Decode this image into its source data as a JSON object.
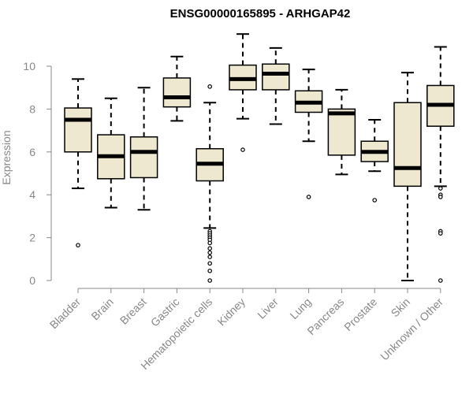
{
  "chart_data": {
    "type": "boxplot",
    "title": "ENSG00000165895 - ARHGAP42",
    "xlabel": "",
    "ylabel": "Expression",
    "ylim": [
      0,
      10.5
    ],
    "yticks": [
      0,
      2,
      4,
      6,
      8,
      10
    ],
    "box_fill": "#efe8d0",
    "categories": [
      "Bladder",
      "Brain",
      "Breast",
      "Gastric",
      "Hematopoietic cells",
      "Kidney",
      "Liver",
      "Lung",
      "Pancreas",
      "Prostate",
      "Skin",
      "Unknown / Other"
    ],
    "boxes": [
      {
        "min": 4.3,
        "q1": 6.0,
        "median": 7.5,
        "q3": 8.05,
        "max": 9.4,
        "outliers": [
          1.65
        ]
      },
      {
        "min": 3.4,
        "q1": 4.75,
        "median": 5.8,
        "q3": 6.8,
        "max": 8.5,
        "outliers": []
      },
      {
        "min": 3.3,
        "q1": 4.8,
        "median": 6.0,
        "q3": 6.7,
        "max": 9.0,
        "outliers": []
      },
      {
        "min": 7.45,
        "q1": 8.1,
        "median": 8.55,
        "q3": 9.45,
        "max": 10.45,
        "outliers": []
      },
      {
        "min": 2.45,
        "q1": 4.65,
        "median": 5.45,
        "q3": 6.15,
        "max": 8.3,
        "outliers": [
          9.05,
          2.3,
          2.2,
          2.1,
          2.0,
          1.9,
          1.75,
          1.5,
          1.3,
          1.1,
          0.8,
          0.45,
          0.0
        ]
      },
      {
        "min": 7.55,
        "q1": 8.9,
        "median": 9.4,
        "q3": 10.05,
        "max": 11.5,
        "outliers": [
          6.1
        ]
      },
      {
        "min": 7.3,
        "q1": 8.9,
        "median": 9.65,
        "q3": 10.1,
        "max": 10.85,
        "outliers": []
      },
      {
        "min": 6.5,
        "q1": 7.85,
        "median": 8.3,
        "q3": 8.85,
        "max": 9.85,
        "outliers": [
          3.9
        ]
      },
      {
        "min": 4.95,
        "q1": 5.85,
        "median": 7.8,
        "q3": 8.0,
        "max": 8.9,
        "outliers": []
      },
      {
        "min": 5.1,
        "q1": 5.55,
        "median": 6.0,
        "q3": 6.5,
        "max": 7.5,
        "outliers": [
          3.75
        ]
      },
      {
        "min": 0.0,
        "q1": 4.4,
        "median": 5.25,
        "q3": 8.3,
        "max": 9.7,
        "outliers": []
      },
      {
        "min": 4.4,
        "q1": 7.2,
        "median": 8.2,
        "q3": 9.1,
        "max": 10.9,
        "outliers": [
          4.3,
          4.0,
          3.9,
          2.3,
          2.2,
          0.0
        ]
      }
    ]
  }
}
